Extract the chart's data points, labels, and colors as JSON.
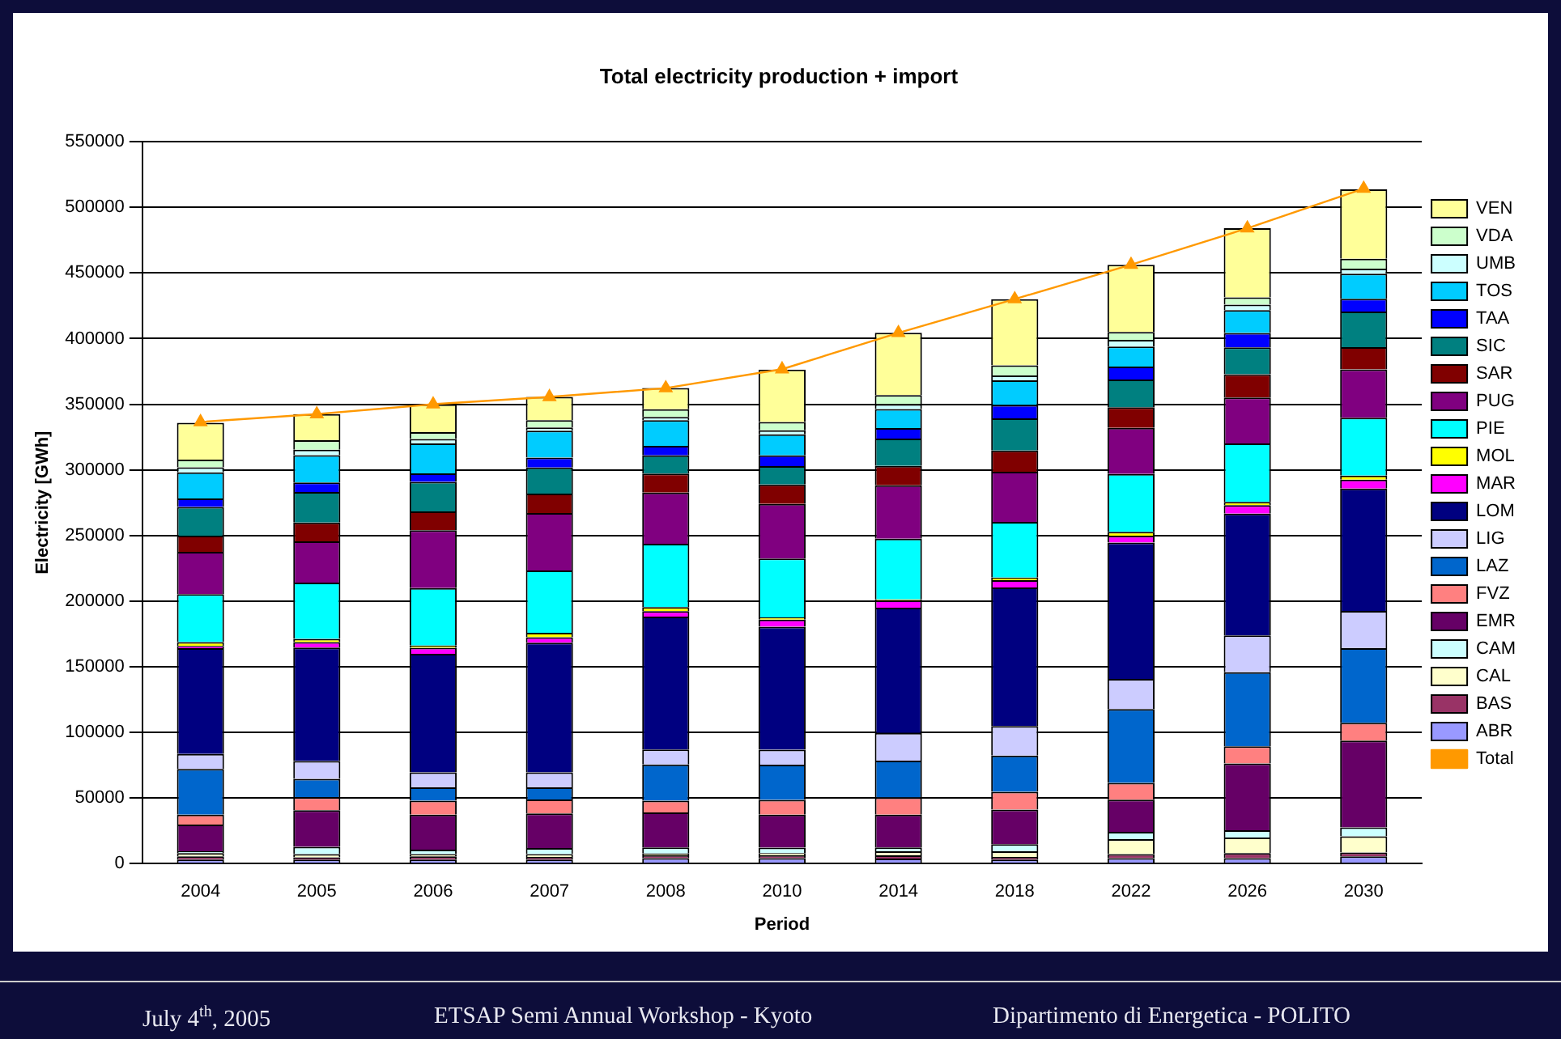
{
  "chart_data": {
    "type": "bar",
    "stacked": true,
    "title": "Total electricity production + import",
    "xlabel": "Period",
    "ylabel": "Electricity [GWh]",
    "categories": [
      "2004",
      "2005",
      "2006",
      "2007",
      "2008",
      "2010",
      "2014",
      "2018",
      "2022",
      "2026",
      "2030"
    ],
    "ylim": [
      0,
      550000
    ],
    "yticks": [
      0,
      50000,
      100000,
      150000,
      200000,
      250000,
      300000,
      350000,
      400000,
      450000,
      500000,
      550000
    ],
    "grid": "y",
    "legend": "right",
    "marker": "triangle",
    "series": [
      {
        "name": "ABR",
        "color": "#9999ff",
        "values": [
          3000,
          3000,
          3000,
          3000,
          4200,
          4200,
          3800,
          3000,
          4200,
          4200,
          5500
        ]
      },
      {
        "name": "BAS",
        "color": "#993366",
        "values": [
          2500,
          1700,
          2500,
          2100,
          2100,
          2100,
          2500,
          2100,
          3000,
          3800,
          3000
        ]
      },
      {
        "name": "CAL",
        "color": "#ffffcc",
        "values": [
          2500,
          2500,
          1700,
          2100,
          1300,
          1700,
          3000,
          4200,
          11400,
          11900,
          12300
        ]
      },
      {
        "name": "CAM",
        "color": "#ccffff",
        "values": [
          1300,
          5500,
          3400,
          4700,
          4700,
          4200,
          3000,
          5500,
          5500,
          5500,
          6800
        ]
      },
      {
        "name": "EMR",
        "color": "#660066",
        "values": [
          20400,
          28000,
          26700,
          26300,
          26700,
          25000,
          25000,
          26300,
          24600,
          50900,
          66100
        ]
      },
      {
        "name": "FVZ",
        "color": "#ff8080",
        "values": [
          7600,
          9800,
          10600,
          10600,
          8900,
          11400,
          13100,
          13600,
          12700,
          13100,
          13600
        ]
      },
      {
        "name": "LAZ",
        "color": "#0066cc",
        "values": [
          34800,
          14000,
          10200,
          9300,
          27600,
          26700,
          28000,
          27600,
          56400,
          56400,
          56800
        ]
      },
      {
        "name": "LIG",
        "color": "#ccccff",
        "values": [
          11400,
          13600,
          11400,
          11400,
          11400,
          11400,
          21200,
          22500,
          22900,
          28000,
          28400
        ]
      },
      {
        "name": "LOM",
        "color": "#000080",
        "values": [
          80600,
          86500,
          90300,
          98800,
          101300,
          93700,
          95400,
          105600,
          103900,
          92900,
          93300
        ]
      },
      {
        "name": "MAR",
        "color": "#ff00ff",
        "values": [
          1700,
          4200,
          4700,
          4200,
          4200,
          5500,
          5500,
          5500,
          5100,
          6400,
          6800
        ]
      },
      {
        "name": "MOL",
        "color": "#ffff00",
        "values": [
          3000,
          2500,
          1700,
          3400,
          3000,
          1700,
          800,
          2100,
          3000,
          2500,
          3000
        ]
      },
      {
        "name": "PIE",
        "color": "#00ffff",
        "values": [
          36500,
          42800,
          43700,
          47500,
          48300,
          44900,
          46200,
          42400,
          44100,
          44500,
          44100
        ]
      },
      {
        "name": "PUG",
        "color": "#800080",
        "values": [
          32200,
          31400,
          44100,
          43700,
          39000,
          41600,
          40700,
          38200,
          35200,
          35100,
          36900
        ]
      },
      {
        "name": "SAR",
        "color": "#800000",
        "values": [
          12300,
          14400,
          14400,
          14800,
          14400,
          14800,
          14800,
          16100,
          15700,
          17700,
          16900
        ]
      },
      {
        "name": "SIC",
        "color": "#008080",
        "values": [
          22000,
          23300,
          22500,
          19900,
          14000,
          14000,
          20800,
          24600,
          21200,
          20400,
          27100
        ]
      },
      {
        "name": "TAA",
        "color": "#0000ff",
        "values": [
          6400,
          7200,
          6400,
          7600,
          7200,
          8100,
          8100,
          10200,
          9800,
          11000,
          9800
        ]
      },
      {
        "name": "TOS",
        "color": "#00ccff",
        "values": [
          19900,
          20800,
          22900,
          20400,
          19500,
          16100,
          14400,
          18700,
          15300,
          17400,
          19100
        ]
      },
      {
        "name": "UMB",
        "color": "#ccffff",
        "values": [
          3800,
          4200,
          3400,
          2500,
          2500,
          3000,
          3800,
          3800,
          5100,
          4200,
          3800
        ]
      },
      {
        "name": "VDA",
        "color": "#ccffcc",
        "values": [
          5900,
          7200,
          5100,
          5500,
          5900,
          6400,
          6800,
          7600,
          5900,
          5500,
          7600
        ]
      },
      {
        "name": "VEN",
        "color": "#ffff99",
        "values": [
          28000,
          19900,
          21200,
          17800,
          16100,
          39900,
          47500,
          50500,
          51300,
          52700,
          52800
        ]
      },
      {
        "name": "Total",
        "type": "line",
        "color": "#ff9900",
        "values": [
          336500,
          342500,
          350000,
          355600,
          362300,
          376700,
          404400,
          430100,
          456300,
          484100,
          514300
        ]
      }
    ],
    "annotations": [
      "July 4$^{th}$, 2005",
      "ETSAP Semi Annual Workshop - Kyoto",
      "Dipartimento di Energetica - POLITO"
    ]
  }
}
